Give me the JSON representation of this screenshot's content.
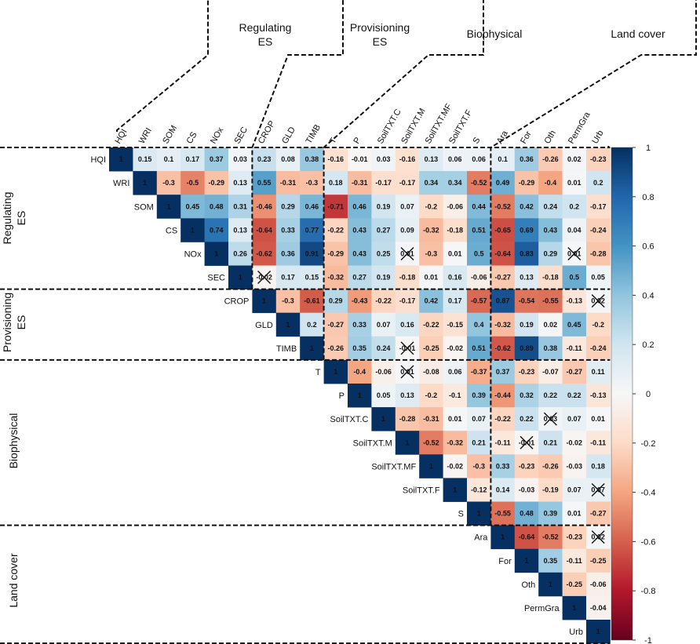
{
  "chart_data": {
    "type": "heatmap",
    "title": "",
    "variables": [
      "HQI",
      "WRI",
      "SOM",
      "CS",
      "NOx",
      "SEC",
      "CROP",
      "GLD",
      "TIMB",
      "T",
      "P",
      "SoilTXT.C",
      "SoilTXT.M",
      "SoilTXT.MF",
      "SoilTXT.F",
      "S",
      "Ara",
      "For",
      "Oth",
      "PermGra",
      "Urb"
    ],
    "groups": [
      {
        "name": "Regulating ES",
        "start": 0,
        "end": 5
      },
      {
        "name": "Provisioning ES",
        "start": 6,
        "end": 8
      },
      {
        "name": "Biophysical",
        "start": 9,
        "end": 15
      },
      {
        "name": "Land cover",
        "start": 16,
        "end": 20
      }
    ],
    "upper_triangle_rows": [
      [
        1,
        0.15,
        0.1,
        0.17,
        0.37,
        0.03,
        0.23,
        0.08,
        0.38,
        -0.16,
        -0.01,
        0.03,
        -0.16,
        0.13,
        0.06,
        0.06,
        0.1,
        0.36,
        -0.26,
        0.02,
        -0.23
      ],
      [
        1,
        -0.3,
        -0.5,
        -0.29,
        0.13,
        0.55,
        -0.31,
        -0.3,
        0.18,
        -0.31,
        -0.17,
        -0.17,
        0.34,
        0.34,
        -0.52,
        0.49,
        -0.29,
        -0.4,
        0.01,
        0.2
      ],
      [
        1,
        0.45,
        0.48,
        0.31,
        -0.46,
        0.29,
        0.46,
        -0.71,
        0.46,
        0.19,
        0.07,
        -0.2,
        -0.06,
        0.44,
        -0.52,
        0.42,
        0.24,
        0.2,
        -0.17
      ],
      [
        1,
        0.74,
        0.13,
        -0.64,
        0.33,
        0.77,
        -0.22,
        0.43,
        0.27,
        0.09,
        -0.32,
        -0.18,
        0.51,
        -0.65,
        0.69,
        0.43,
        0.04,
        -0.24
      ],
      [
        1,
        0.26,
        -0.62,
        0.36,
        0.91,
        -0.29,
        0.43,
        0.25,
        0.01,
        -0.3,
        0.01,
        0.5,
        -0.64,
        0.83,
        0.29,
        0.01,
        -0.28
      ],
      [
        1,
        -0.02,
        0.17,
        0.15,
        -0.32,
        0.27,
        0.19,
        -0.18,
        0.01,
        0.16,
        -0.06,
        -0.27,
        0.13,
        -0.18,
        0.5,
        0.05
      ],
      [
        1,
        -0.3,
        -0.61,
        0.29,
        -0.43,
        -0.22,
        -0.17,
        0.42,
        0.17,
        -0.57,
        0.87,
        -0.54,
        -0.55,
        -0.13,
        0.02
      ],
      [
        1,
        0.2,
        -0.27,
        0.33,
        0.07,
        0.16,
        -0.22,
        -0.15,
        0.4,
        -0.32,
        0.19,
        0.02,
        0.45,
        -0.2
      ],
      [
        1,
        -0.26,
        0.35,
        0.24,
        -0.01,
        -0.25,
        -0.02,
        0.51,
        -0.62,
        0.89,
        0.38,
        -0.11,
        -0.24
      ],
      [
        1,
        -0.4,
        -0.06,
        0.01,
        -0.08,
        0.06,
        -0.37,
        0.37,
        -0.23,
        -0.07,
        -0.27,
        0.11
      ],
      [
        1,
        0.05,
        0.13,
        -0.2,
        -0.1,
        0.39,
        -0.44,
        0.32,
        0.22,
        0.22,
        -0.13
      ],
      [
        1,
        -0.28,
        -0.31,
        0.01,
        0.07,
        -0.22,
        0.22,
        0.03,
        0.07,
        0.01
      ],
      [
        1,
        -0.52,
        -0.32,
        0.21,
        -0.11,
        -0.01,
        0.21,
        -0.02,
        -0.11
      ],
      [
        1,
        -0.02,
        -0.3,
        0.33,
        -0.23,
        -0.26,
        -0.03,
        0.18
      ],
      [
        1,
        -0.12,
        0.14,
        -0.03,
        -0.19,
        0.07,
        0.07
      ],
      [
        1,
        -0.55,
        0.48,
        0.39,
        0.01,
        -0.27
      ],
      [
        1,
        -0.64,
        -0.52,
        -0.23,
        0.02
      ],
      [
        1,
        0.35,
        -0.11,
        -0.25
      ],
      [
        1,
        -0.25,
        -0.06
      ],
      [
        1,
        -0.04
      ],
      [
        1
      ]
    ],
    "crossed_cells": [
      [
        4,
        12
      ],
      [
        4,
        19
      ],
      [
        5,
        6
      ],
      [
        6,
        20
      ],
      [
        8,
        12
      ],
      [
        9,
        12
      ],
      [
        11,
        18
      ],
      [
        12,
        17
      ],
      [
        14,
        20
      ],
      [
        16,
        20
      ]
    ],
    "colorbar": {
      "ticks": [
        "1",
        "0.8",
        "0.6",
        "0.4",
        "0.2",
        "0",
        "-0.2",
        "-0.4",
        "-0.6",
        "-0.8",
        "-1"
      ],
      "range": [
        -1,
        1
      ]
    },
    "colors": {
      "neg": "#67001f",
      "neg_mid": "#d6604d",
      "zero": "#f7f7f7",
      "pos_mid": "#4393c3",
      "pos": "#053061"
    }
  },
  "group_labels": {
    "regulating": [
      "Regulating",
      "ES"
    ],
    "provisioning": [
      "Provisioning",
      "ES"
    ],
    "biophysical": "Biophysical",
    "landcover": "Land cover"
  }
}
